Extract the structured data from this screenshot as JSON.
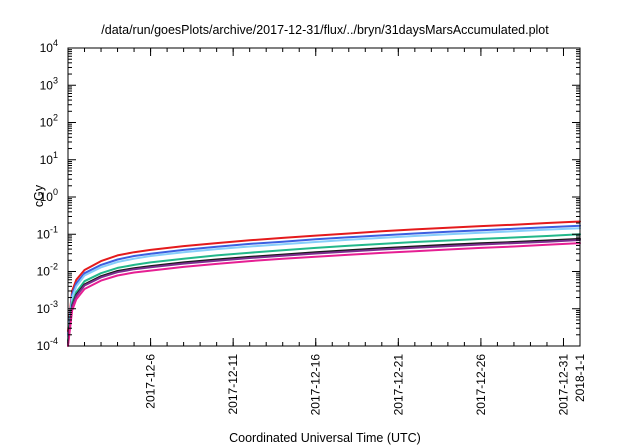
{
  "chart_data": {
    "type": "line",
    "title": "/data/run/goesPlots/archive/2017-12-31/flux/../bryn/31daysMarsAccumulated.plot",
    "xlabel": "Coordinated Universal Time (UTC)",
    "ylabel": "cGy",
    "xlim": [
      "2017-12-01",
      "2018-01-01"
    ],
    "ylim": [
      0.0001,
      10000
    ],
    "yscale": "log",
    "grid": false,
    "legend": "none",
    "x_ticks": [
      "2017-12-6",
      "2017-12-11",
      "2017-12-16",
      "2017-12-21",
      "2017-12-26",
      "2017-12-31",
      "2018-1-1"
    ],
    "y_ticks": [
      {
        "value": 0.0001,
        "mantissa": "10",
        "exp": "-4"
      },
      {
        "value": 0.001,
        "mantissa": "10",
        "exp": "-3"
      },
      {
        "value": 0.01,
        "mantissa": "10",
        "exp": "-2"
      },
      {
        "value": 0.1,
        "mantissa": "10",
        "exp": "-1"
      },
      {
        "value": 1,
        "mantissa": "10",
        "exp": "0"
      },
      {
        "value": 10,
        "mantissa": "10",
        "exp": "1"
      },
      {
        "value": 100,
        "mantissa": "10",
        "exp": "2"
      },
      {
        "value": 1000,
        "mantissa": "10",
        "exp": "3"
      },
      {
        "value": 10000,
        "mantissa": "10",
        "exp": "4"
      }
    ],
    "x": [
      "2017-12-01",
      "2017-12-01T06",
      "2017-12-01T12",
      "2017-12-02",
      "2017-12-03",
      "2017-12-04",
      "2017-12-05",
      "2017-12-06",
      "2017-12-08",
      "2017-12-10",
      "2017-12-12",
      "2017-12-14",
      "2017-12-16",
      "2017-12-18",
      "2017-12-20",
      "2017-12-22",
      "2017-12-24",
      "2017-12-26",
      "2017-12-28",
      "2017-12-30",
      "2018-01-01"
    ],
    "series": [
      {
        "color": "#e41a1c",
        "values": [
          0.00025,
          0.003,
          0.006,
          0.011,
          0.019,
          0.027,
          0.033,
          0.038,
          0.048,
          0.058,
          0.069,
          0.08,
          0.092,
          0.105,
          0.12,
          0.135,
          0.15,
          0.165,
          0.18,
          0.2,
          0.22
        ]
      },
      {
        "color": "#3b5fe0",
        "values": [
          0.0002,
          0.0024,
          0.0048,
          0.009,
          0.015,
          0.021,
          0.026,
          0.03,
          0.038,
          0.046,
          0.055,
          0.063,
          0.073,
          0.083,
          0.093,
          0.105,
          0.117,
          0.128,
          0.14,
          0.155,
          0.17
        ]
      },
      {
        "color": "#87cefa",
        "values": [
          0.00018,
          0.002,
          0.004,
          0.0078,
          0.013,
          0.018,
          0.022,
          0.026,
          0.033,
          0.04,
          0.047,
          0.054,
          0.062,
          0.071,
          0.08,
          0.09,
          0.1,
          0.11,
          0.12,
          0.133,
          0.145
        ]
      },
      {
        "color": "#22b88a",
        "values": [
          0.00014,
          0.0014,
          0.0028,
          0.0055,
          0.009,
          0.0125,
          0.015,
          0.0175,
          0.022,
          0.027,
          0.032,
          0.037,
          0.043,
          0.049,
          0.055,
          0.062,
          0.068,
          0.075,
          0.082,
          0.09,
          0.1
        ]
      },
      {
        "color": "#1a1a1a",
        "values": [
          0.00012,
          0.0012,
          0.0024,
          0.0045,
          0.0075,
          0.0103,
          0.0123,
          0.014,
          0.0175,
          0.021,
          0.0247,
          0.0285,
          0.033,
          0.037,
          0.042,
          0.047,
          0.052,
          0.057,
          0.062,
          0.068,
          0.075
        ]
      },
      {
        "color": "#7b2d8e",
        "values": [
          0.00011,
          0.0011,
          0.0022,
          0.0042,
          0.007,
          0.0096,
          0.0115,
          0.013,
          0.0163,
          0.0195,
          0.023,
          0.0265,
          0.0305,
          0.0345,
          0.039,
          0.0435,
          0.048,
          0.053,
          0.058,
          0.063,
          0.07
        ]
      },
      {
        "color": "#e61f93",
        "values": [
          0.0001,
          0.0009,
          0.0018,
          0.0034,
          0.0057,
          0.0078,
          0.0094,
          0.0106,
          0.0133,
          0.016,
          0.019,
          0.022,
          0.025,
          0.028,
          0.0315,
          0.035,
          0.039,
          0.043,
          0.047,
          0.052,
          0.058
        ]
      }
    ]
  }
}
